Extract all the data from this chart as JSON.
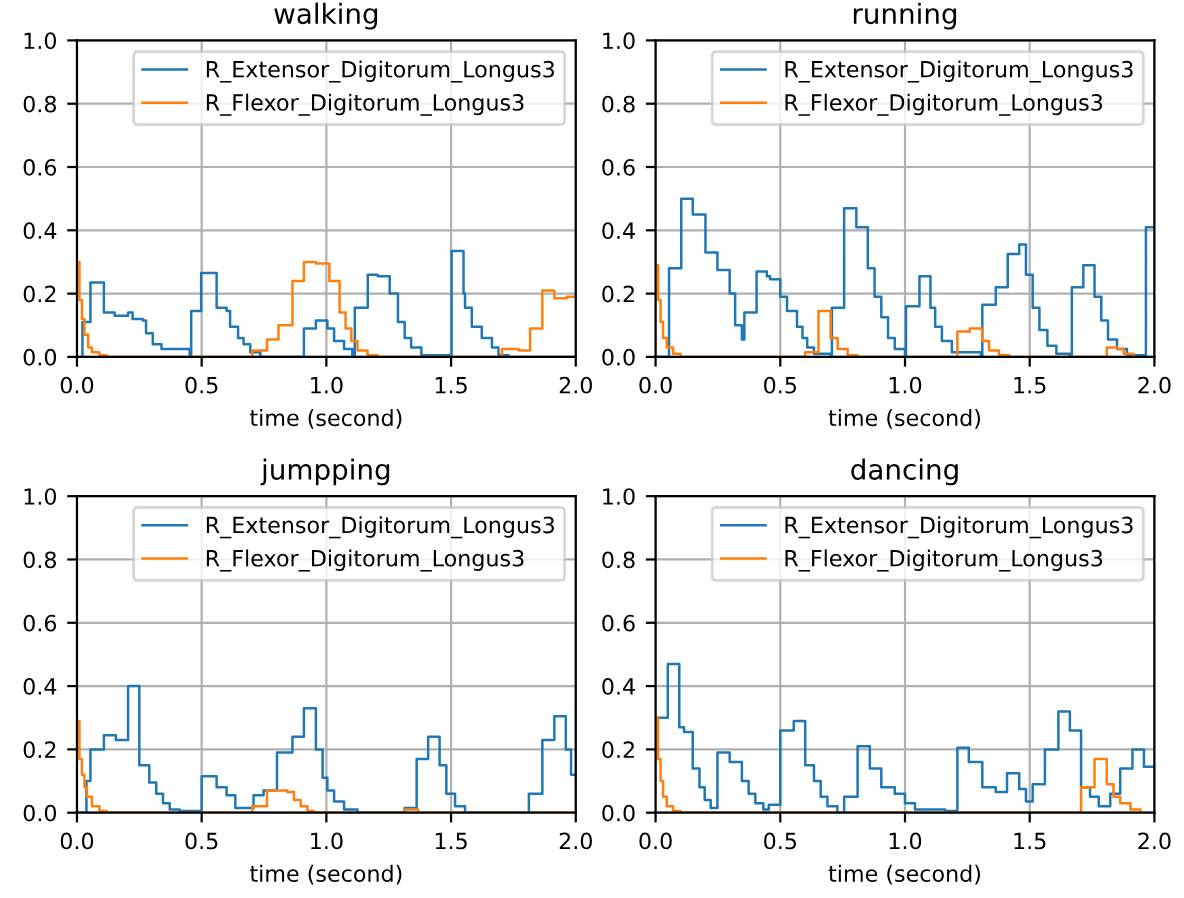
{
  "chart_data": [
    {
      "type": "step",
      "title": "walking",
      "xlabel": "time (second)",
      "xlim": [
        0,
        2
      ],
      "ylim": [
        0,
        1
      ],
      "xticks": [
        {
          "value": 0,
          "label": "0.0"
        },
        {
          "value": 0.5,
          "label": "0.5"
        },
        {
          "value": 1,
          "label": "1.0"
        },
        {
          "value": 1.5,
          "label": "1.5"
        },
        {
          "value": 2,
          "label": "2.0"
        }
      ],
      "yticks": [
        {
          "value": 0,
          "label": "0.0"
        },
        {
          "value": 0.2,
          "label": "0.2"
        },
        {
          "value": 0.4,
          "label": "0.4"
        },
        {
          "value": 0.6,
          "label": "0.6"
        },
        {
          "value": 0.8,
          "label": "0.8"
        },
        {
          "value": 1,
          "label": "1.0"
        }
      ],
      "grid": true,
      "legend": "top right",
      "series": [
        {
          "name": "R_Extensor_Digitorum_Longus3",
          "color": "#1f77b4",
          "x": [
            0,
            0.022,
            0.054,
            0.108,
            0.151,
            0.205,
            0.223,
            0.264,
            0.277,
            0.304,
            0.339,
            0.452,
            0.458,
            0.498,
            0.511,
            0.56,
            0.6,
            0.614,
            0.646,
            0.668,
            0.695,
            0.735,
            0.91,
            0.958,
            1.004,
            1.031,
            1.071,
            1.104,
            1.114,
            1.166,
            1.206,
            1.254,
            1.287,
            1.314,
            1.34,
            1.381,
            1.497,
            1.502,
            1.55,
            1.556,
            1.583,
            1.623,
            1.664,
            1.69,
            1.731,
            2.0
          ],
          "values": [
            0,
            0.11,
            0.235,
            0.14,
            0.13,
            0.14,
            0.12,
            0.115,
            0.075,
            0.04,
            0.025,
            0.005,
            0.145,
            0.265,
            0.265,
            0.155,
            0.145,
            0.095,
            0.06,
            0.04,
            0.015,
            0,
            0.09,
            0.115,
            0.09,
            0.05,
            0.025,
            0,
            0.155,
            0.26,
            0.255,
            0.2,
            0.11,
            0.06,
            0.03,
            0.005,
            0,
            0.335,
            0.2,
            0.155,
            0.095,
            0.06,
            0.03,
            0.005,
            0,
            0
          ]
        },
        {
          "name": "R_Flexor_Digitorum_Longus3",
          "color": "#ff7f0e",
          "x": [
            0,
            0.01,
            0.02,
            0.03,
            0.045,
            0.06,
            0.09,
            0.12,
            0.703,
            0.762,
            0.808,
            0.864,
            0.91,
            0.958,
            1.012,
            1.053,
            1.077,
            1.1,
            1.125,
            1.165,
            1.206,
            1.704,
            1.771,
            1.817,
            1.866,
            1.914,
            1.965,
            2.0
          ],
          "values": [
            0.3,
            0.18,
            0.12,
            0.07,
            0.03,
            0.015,
            0.005,
            0,
            0.02,
            0.055,
            0.1,
            0.24,
            0.3,
            0.295,
            0.24,
            0.14,
            0.09,
            0.05,
            0.02,
            0.005,
            0,
            0.025,
            0.02,
            0.09,
            0.21,
            0.185,
            0.19,
            0.19
          ]
        }
      ]
    },
    {
      "type": "step",
      "title": "running",
      "xlabel": "time (second)",
      "xlim": [
        0,
        2
      ],
      "ylim": [
        0,
        1
      ],
      "xticks": [
        {
          "value": 0,
          "label": "0.0"
        },
        {
          "value": 0.5,
          "label": "0.5"
        },
        {
          "value": 1,
          "label": "1.0"
        },
        {
          "value": 1.5,
          "label": "1.5"
        },
        {
          "value": 2,
          "label": "2.0"
        }
      ],
      "yticks": [
        {
          "value": 0,
          "label": "0.0"
        },
        {
          "value": 0.2,
          "label": "0.2"
        },
        {
          "value": 0.4,
          "label": "0.4"
        },
        {
          "value": 0.6,
          "label": "0.6"
        },
        {
          "value": 0.8,
          "label": "0.8"
        },
        {
          "value": 1,
          "label": "1.0"
        }
      ],
      "grid": true,
      "legend": "top right",
      "series": [
        {
          "name": "R_Extensor_Digitorum_Longus3",
          "color": "#1f77b4",
          "x": [
            0,
            0.054,
            0.103,
            0.149,
            0.2,
            0.248,
            0.297,
            0.319,
            0.346,
            0.356,
            0.405,
            0.446,
            0.459,
            0.5,
            0.527,
            0.567,
            0.589,
            0.608,
            0.635,
            0.702,
            0.707,
            0.756,
            0.805,
            0.851,
            0.878,
            0.905,
            0.932,
            0.959,
            1.0,
            1.004,
            1.058,
            1.102,
            1.121,
            1.148,
            1.188,
            1.304,
            1.31,
            1.364,
            1.412,
            1.458,
            1.485,
            1.512,
            1.539,
            1.571,
            1.607,
            1.661,
            1.669,
            1.715,
            1.76,
            1.787,
            1.814,
            1.85,
            1.89,
            1.958,
            1.966,
            2.0
          ],
          "values": [
            0,
            0.28,
            0.5,
            0.45,
            0.33,
            0.275,
            0.2,
            0.1,
            0.055,
            0.14,
            0.27,
            0.255,
            0.245,
            0.19,
            0.145,
            0.095,
            0.06,
            0.03,
            0.01,
            0,
            0.155,
            0.47,
            0.41,
            0.28,
            0.19,
            0.125,
            0.06,
            0.025,
            0,
            0.16,
            0.255,
            0.155,
            0.095,
            0.05,
            0.015,
            0,
            0.165,
            0.22,
            0.325,
            0.355,
            0.26,
            0.155,
            0.085,
            0.035,
            0.01,
            0,
            0.22,
            0.29,
            0.19,
            0.115,
            0.055,
            0.025,
            0.005,
            0,
            0.41,
            0.41
          ]
        },
        {
          "name": "R_Flexor_Digitorum_Longus3",
          "color": "#ff7f0e",
          "x": [
            0,
            0.01,
            0.02,
            0.03,
            0.045,
            0.07,
            0.1,
            0.6,
            0.653,
            0.702,
            0.73,
            0.77,
            0.81,
            1.21,
            1.26,
            1.31,
            1.337,
            1.377,
            1.418,
            1.809,
            1.85,
            1.877,
            1.917
          ],
          "values": [
            0.29,
            0.18,
            0.11,
            0.06,
            0.03,
            0.01,
            0,
            0.015,
            0.145,
            0.06,
            0.025,
            0.005,
            0,
            0.08,
            0.09,
            0.05,
            0.02,
            0.005,
            0,
            0.03,
            0.025,
            0.01,
            0
          ]
        }
      ]
    },
    {
      "type": "step",
      "title": "jumpping",
      "xlabel": "time (second)",
      "xlim": [
        0,
        2
      ],
      "ylim": [
        0,
        1
      ],
      "xticks": [
        {
          "value": 0,
          "label": "0.0"
        },
        {
          "value": 0.5,
          "label": "0.5"
        },
        {
          "value": 1,
          "label": "1.0"
        },
        {
          "value": 1.5,
          "label": "1.5"
        },
        {
          "value": 2,
          "label": "2.0"
        }
      ],
      "yticks": [
        {
          "value": 0,
          "label": "0.0"
        },
        {
          "value": 0.2,
          "label": "0.2"
        },
        {
          "value": 0.4,
          "label": "0.4"
        },
        {
          "value": 0.6,
          "label": "0.6"
        },
        {
          "value": 0.8,
          "label": "0.8"
        },
        {
          "value": 1,
          "label": "1.0"
        }
      ],
      "grid": true,
      "legend": "top right",
      "series": [
        {
          "name": "R_Extensor_Digitorum_Longus3",
          "color": "#1f77b4",
          "x": [
            0,
            0.038,
            0.054,
            0.108,
            0.156,
            0.205,
            0.25,
            0.29,
            0.318,
            0.345,
            0.372,
            0.412,
            0.5,
            0.56,
            0.6,
            0.635,
            0.708,
            0.748,
            0.802,
            0.864,
            0.91,
            0.958,
            0.985,
            1.004,
            1.031,
            1.071,
            1.125,
            1.314,
            1.362,
            1.408,
            1.454,
            1.481,
            1.516,
            1.556,
            1.812,
            1.866,
            1.914,
            1.96,
            1.981,
            2.0
          ],
          "values": [
            0,
            0.1,
            0.2,
            0.245,
            0.23,
            0.4,
            0.15,
            0.095,
            0.06,
            0.03,
            0.01,
            0.005,
            0.115,
            0.08,
            0.055,
            0.015,
            0.055,
            0.07,
            0.19,
            0.24,
            0.33,
            0.2,
            0.11,
            0.07,
            0.035,
            0.01,
            0,
            0.015,
            0.17,
            0.24,
            0.15,
            0.06,
            0.02,
            0,
            0.06,
            0.23,
            0.305,
            0.2,
            0.12,
            0.12
          ]
        },
        {
          "name": "R_Flexor_Digitorum_Longus3",
          "color": "#ff7f0e",
          "x": [
            0,
            0.01,
            0.02,
            0.03,
            0.04,
            0.06,
            0.09,
            0.12,
            0.703,
            0.762,
            0.843,
            0.87,
            0.897,
            0.924,
            0.95,
            1.314,
            1.368,
            2.0
          ],
          "values": [
            0.29,
            0.17,
            0.12,
            0.08,
            0.05,
            0.02,
            0.005,
            0,
            0.02,
            0.07,
            0.065,
            0.04,
            0.02,
            0.005,
            0,
            0.01,
            0,
            0
          ]
        }
      ]
    },
    {
      "type": "step",
      "title": "dancing",
      "xlabel": "time (second)",
      "xlim": [
        0,
        2
      ],
      "ylim": [
        0,
        1
      ],
      "xticks": [
        {
          "value": 0,
          "label": "0.0"
        },
        {
          "value": 0.5,
          "label": "0.5"
        },
        {
          "value": 1,
          "label": "1.0"
        },
        {
          "value": 1.5,
          "label": "1.5"
        },
        {
          "value": 2,
          "label": "2.0"
        }
      ],
      "yticks": [
        {
          "value": 0,
          "label": "0.0"
        },
        {
          "value": 0.2,
          "label": "0.2"
        },
        {
          "value": 0.4,
          "label": "0.4"
        },
        {
          "value": 0.6,
          "label": "0.6"
        },
        {
          "value": 0.8,
          "label": "0.8"
        },
        {
          "value": 1,
          "label": "1.0"
        }
      ],
      "grid": true,
      "legend": "top right",
      "series": [
        {
          "name": "R_Extensor_Digitorum_Longus3",
          "color": "#1f77b4",
          "x": [
            0,
            0.049,
            0.095,
            0.114,
            0.149,
            0.176,
            0.197,
            0.221,
            0.248,
            0.297,
            0.346,
            0.373,
            0.4,
            0.432,
            0.454,
            0.5,
            0.554,
            0.6,
            0.635,
            0.662,
            0.689,
            0.729,
            0.756,
            0.81,
            0.859,
            0.905,
            0.959,
            1.0,
            1.04,
            1.161,
            1.21,
            1.256,
            1.31,
            1.364,
            1.409,
            1.458,
            1.485,
            1.512,
            1.561,
            1.615,
            1.661,
            1.706,
            1.742,
            1.777,
            1.823,
            1.863,
            1.912,
            1.958,
            2.0
          ],
          "values": [
            0.3,
            0.47,
            0.27,
            0.255,
            0.14,
            0.08,
            0.04,
            0.015,
            0.19,
            0.16,
            0.1,
            0.06,
            0.03,
            0.01,
            0.025,
            0.26,
            0.29,
            0.15,
            0.1,
            0.05,
            0.02,
            0,
            0.05,
            0.21,
            0.14,
            0.08,
            0.06,
            0.03,
            0.01,
            0.005,
            0.205,
            0.16,
            0.08,
            0.065,
            0.125,
            0.075,
            0.035,
            0.09,
            0.2,
            0.32,
            0.26,
            0.08,
            0.05,
            0.02,
            0.06,
            0.14,
            0.2,
            0.145,
            0.145
          ]
        },
        {
          "name": "R_Flexor_Digitorum_Longus3",
          "color": "#ff7f0e",
          "x": [
            0,
            0.01,
            0.02,
            0.03,
            0.045,
            0.07,
            0.1,
            1.706,
            1.76,
            1.809,
            1.836,
            1.863,
            1.904,
            1.944
          ],
          "values": [
            0.3,
            0.17,
            0.1,
            0.05,
            0.02,
            0.005,
            0,
            0.08,
            0.17,
            0.09,
            0.05,
            0.03,
            0.01,
            0
          ]
        }
      ]
    }
  ]
}
